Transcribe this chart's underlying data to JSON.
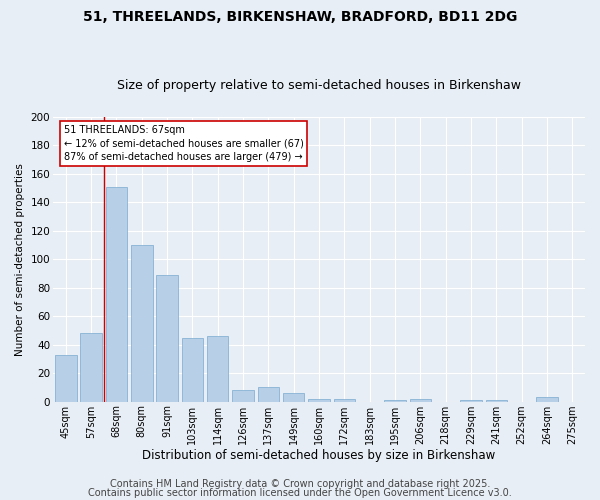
{
  "title": "51, THREELANDS, BIRKENSHAW, BRADFORD, BD11 2DG",
  "subtitle": "Size of property relative to semi-detached houses in Birkenshaw",
  "xlabel": "Distribution of semi-detached houses by size in Birkenshaw",
  "ylabel": "Number of semi-detached properties",
  "categories": [
    "45sqm",
    "57sqm",
    "68sqm",
    "80sqm",
    "91sqm",
    "103sqm",
    "114sqm",
    "126sqm",
    "137sqm",
    "149sqm",
    "160sqm",
    "172sqm",
    "183sqm",
    "195sqm",
    "206sqm",
    "218sqm",
    "229sqm",
    "241sqm",
    "252sqm",
    "264sqm",
    "275sqm"
  ],
  "values": [
    33,
    48,
    151,
    110,
    89,
    45,
    46,
    8,
    10,
    6,
    2,
    2,
    0,
    1,
    2,
    0,
    1,
    1,
    0,
    3,
    0
  ],
  "bar_color": "#b8cfe8",
  "bar_edge_color": "#7aaad0",
  "highlight_index": 2,
  "highlight_line_color": "#cc0000",
  "annotation_line1": "51 THREELANDS: 67sqm",
  "annotation_line2": "← 12% of semi-detached houses are smaller (67)",
  "annotation_line3": "87% of semi-detached houses are larger (479) →",
  "annotation_box_color": "#ffffff",
  "annotation_box_edge_color": "#cc0000",
  "ylim": [
    0,
    200
  ],
  "yticks": [
    0,
    20,
    40,
    60,
    80,
    100,
    120,
    140,
    160,
    180,
    200
  ],
  "background_color": "#e8eef5",
  "grid_color": "#ffffff",
  "footer_line1": "Contains HM Land Registry data © Crown copyright and database right 2025.",
  "footer_line2": "Contains public sector information licensed under the Open Government Licence v3.0.",
  "title_fontsize": 10,
  "subtitle_fontsize": 9,
  "footer_fontsize": 7,
  "ylabel_fontsize": 7.5,
  "xlabel_fontsize": 8.5,
  "ytick_fontsize": 7.5,
  "xtick_fontsize": 7
}
